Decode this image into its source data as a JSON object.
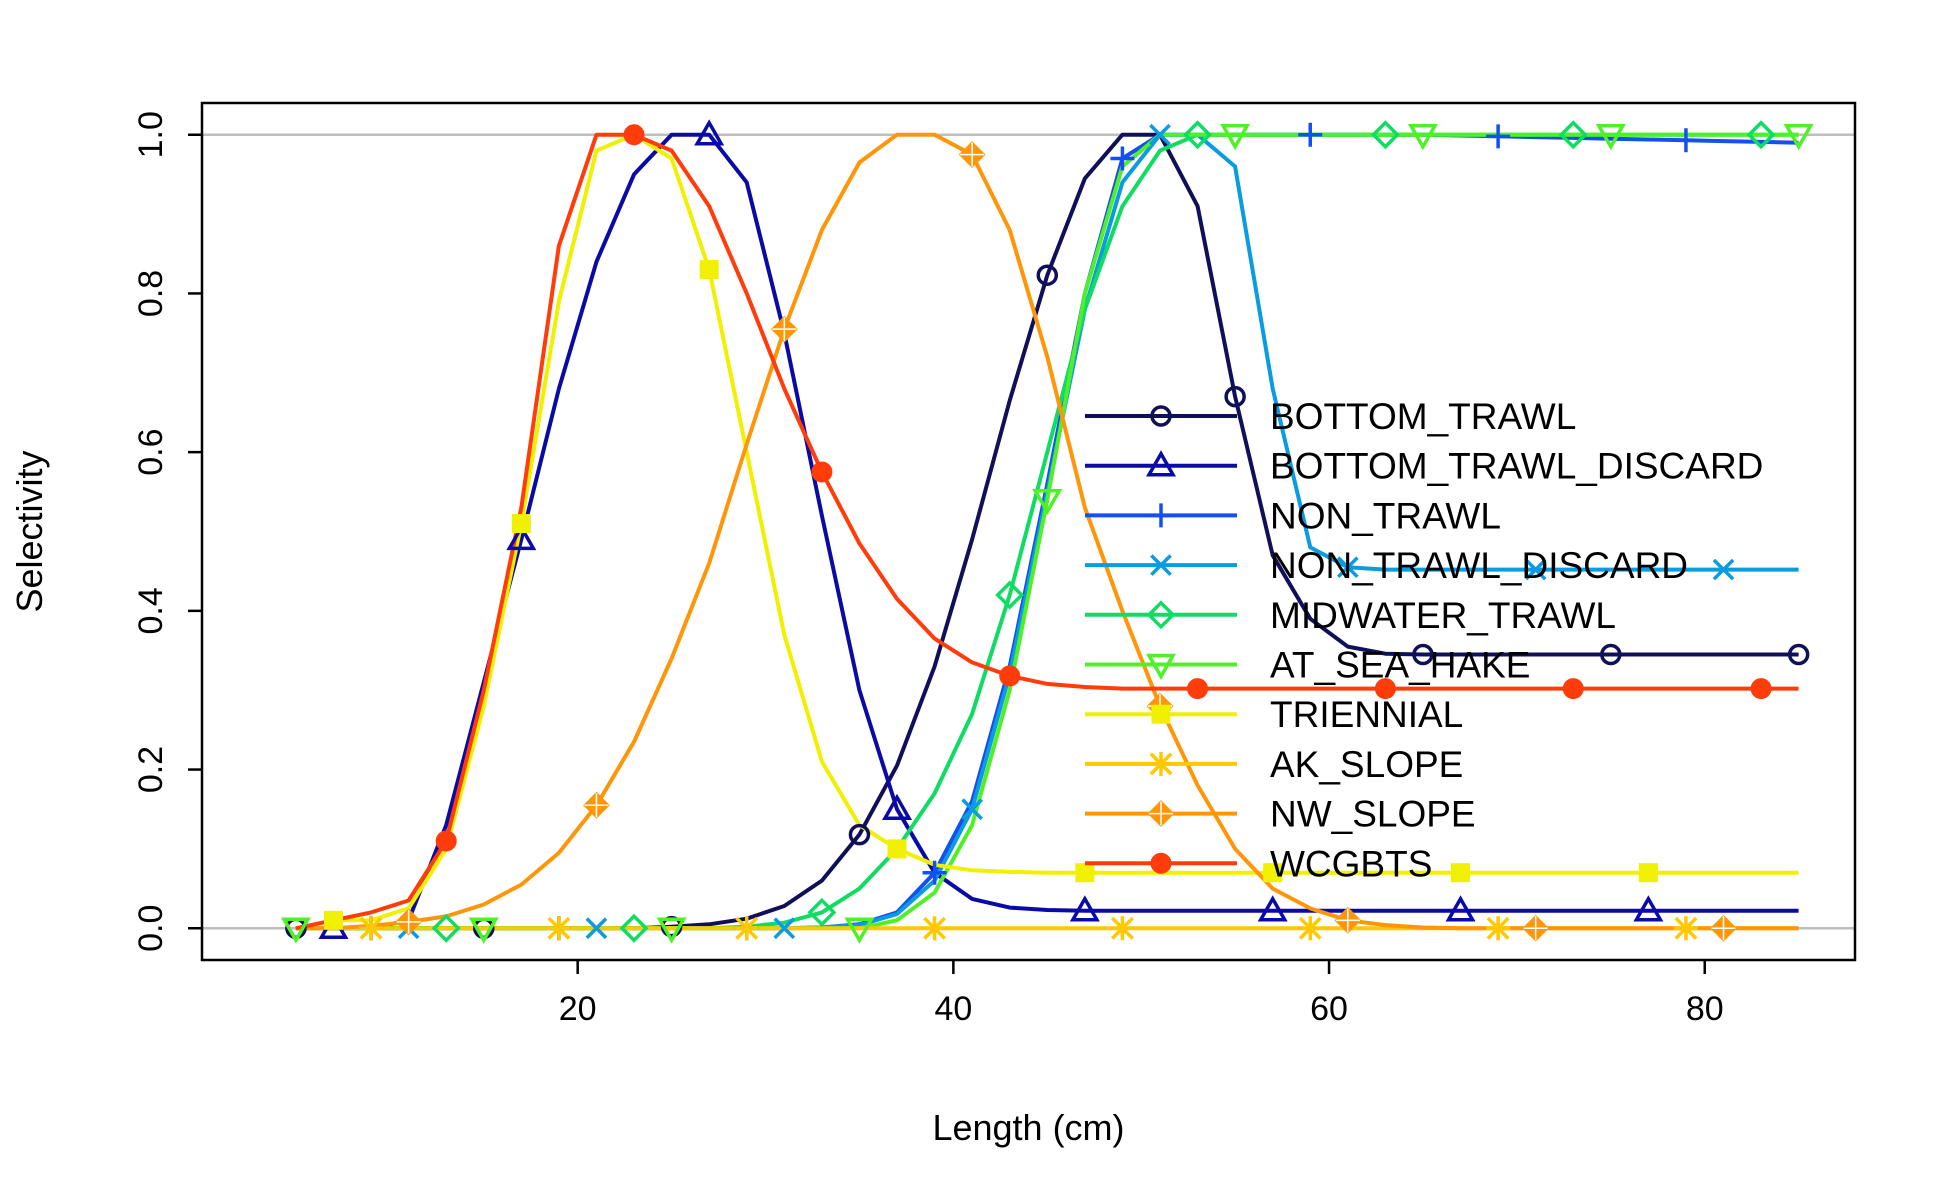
{
  "chart_data": {
    "type": "line",
    "title": "",
    "xlabel": "Length (cm)",
    "ylabel": "Selectivity",
    "xlim": [
      0,
      88
    ],
    "ylim": [
      -0.04,
      1.04
    ],
    "x_ticks": [
      20,
      40,
      60,
      80
    ],
    "y_ticks": [
      0.0,
      0.2,
      0.4,
      0.6,
      0.8,
      1.0
    ],
    "x_tick_labels": [
      "20",
      "40",
      "60",
      "80"
    ],
    "y_tick_labels": [
      "0.0",
      "0.2",
      "0.4",
      "0.6",
      "0.8",
      "1.0"
    ],
    "reference_lines_y": [
      0,
      1
    ],
    "reference_line_color": "#bebebe",
    "legend_position": "right",
    "x": [
      5,
      7,
      9,
      11,
      13,
      15,
      17,
      19,
      21,
      23,
      25,
      27,
      29,
      31,
      33,
      35,
      37,
      39,
      41,
      43,
      45,
      47,
      49,
      51,
      53,
      55,
      57,
      59,
      61,
      63,
      65,
      67,
      69,
      71,
      73,
      75,
      77,
      79,
      81,
      83,
      85
    ],
    "series": [
      {
        "name": "BOTTOM_TRAWL",
        "color": "#10105a",
        "marker": "circle",
        "values": [
          0,
          0,
          0,
          0,
          0,
          0,
          0,
          0,
          0,
          0,
          0.002,
          0.005,
          0.012,
          0.028,
          0.06,
          0.118,
          0.205,
          0.33,
          0.49,
          0.665,
          0.823,
          0.945,
          1.0,
          1.0,
          0.91,
          0.67,
          0.47,
          0.39,
          0.355,
          0.346,
          0.345,
          0.345,
          0.345,
          0.345,
          0.345,
          0.345,
          0.345,
          0.345,
          0.345,
          0.345,
          0.345
        ]
      },
      {
        "name": "BOTTOM_TRAWL_DISCARD",
        "color": "#0a0aa5",
        "marker": "triangle",
        "values": [
          0,
          0,
          0,
          0.01,
          0.13,
          0.31,
          0.49,
          0.68,
          0.84,
          0.95,
          1.0,
          1.0,
          0.94,
          0.75,
          0.52,
          0.3,
          0.15,
          0.07,
          0.037,
          0.026,
          0.023,
          0.022,
          0.022,
          0.022,
          0.022,
          0.022,
          0.022,
          0.022,
          0.022,
          0.022,
          0.022,
          0.022,
          0.022,
          0.022,
          0.022,
          0.022,
          0.022,
          0.022,
          0.022,
          0.022,
          0.022
        ]
      },
      {
        "name": "NON_TRAWL",
        "color": "#1450f0",
        "marker": "plus",
        "values": [
          0,
          0,
          0,
          0,
          0,
          0,
          0,
          0,
          0,
          0,
          0,
          0,
          0,
          0,
          0.001,
          0.005,
          0.02,
          0.07,
          0.16,
          0.33,
          0.56,
          0.8,
          0.97,
          1.0,
          1.0,
          1.0,
          1.0,
          1.0,
          1.0,
          1.0,
          1.0,
          0.999,
          0.998,
          0.997,
          0.996,
          0.995,
          0.994,
          0.993,
          0.992,
          0.991,
          0.99
        ]
      },
      {
        "name": "NON_TRAWL_DISCARD",
        "color": "#0a9be1",
        "marker": "x",
        "values": [
          0,
          0,
          0,
          0,
          0,
          0,
          0,
          0,
          0,
          0,
          0,
          0,
          0,
          0,
          0.001,
          0.004,
          0.018,
          0.06,
          0.15,
          0.32,
          0.55,
          0.78,
          0.94,
          1.0,
          1.0,
          0.96,
          0.68,
          0.48,
          0.455,
          0.452,
          0.452,
          0.452,
          0.452,
          0.452,
          0.452,
          0.452,
          0.452,
          0.452,
          0.452,
          0.452,
          0.452
        ]
      },
      {
        "name": "MIDWATER_TRAWL",
        "color": "#10dc64",
        "marker": "diamond",
        "values": [
          0,
          0,
          0,
          0,
          0,
          0,
          0,
          0,
          0,
          0,
          0,
          0,
          0.002,
          0.007,
          0.02,
          0.05,
          0.1,
          0.17,
          0.27,
          0.42,
          0.6,
          0.78,
          0.91,
          0.98,
          1.0,
          1.0,
          1.0,
          1.0,
          1.0,
          1.0,
          1.0,
          1.0,
          1.0,
          1.0,
          1.0,
          1.0,
          1.0,
          1.0,
          1.0,
          1.0,
          1.0
        ]
      },
      {
        "name": "AT_SEA_HAKE",
        "color": "#50f028",
        "marker": "triangle-down",
        "values": [
          0,
          0,
          0,
          0,
          0,
          0,
          0,
          0,
          0,
          0,
          0,
          0,
          0,
          0,
          0,
          0,
          0.01,
          0.045,
          0.13,
          0.3,
          0.54,
          0.8,
          0.96,
          1.0,
          1.0,
          1.0,
          1.0,
          1.0,
          1.0,
          1.0,
          1.0,
          1.0,
          1.0,
          1.0,
          1.0,
          1.0,
          1.0,
          1.0,
          1.0,
          1.0,
          1.0
        ]
      },
      {
        "name": "TRIENNIAL",
        "color": "#f0f000",
        "marker": "square",
        "values": [
          0,
          0.01,
          0.01,
          0.025,
          0.1,
          0.28,
          0.51,
          0.79,
          0.98,
          1.0,
          0.97,
          0.83,
          0.6,
          0.37,
          0.21,
          0.13,
          0.1,
          0.08,
          0.073,
          0.071,
          0.07,
          0.07,
          0.07,
          0.07,
          0.07,
          0.07,
          0.07,
          0.07,
          0.07,
          0.07,
          0.07,
          0.07,
          0.07,
          0.07,
          0.07,
          0.07,
          0.07,
          0.07,
          0.07,
          0.07,
          0.07
        ]
      },
      {
        "name": "AK_SLOPE",
        "color": "#ffc800",
        "marker": "asterisk",
        "values": [
          0,
          0,
          0,
          0,
          0,
          0,
          0,
          0,
          0,
          0,
          0,
          0,
          0,
          0,
          0,
          0,
          0,
          0,
          0,
          0,
          0,
          0,
          0,
          0,
          0,
          0,
          0,
          0,
          0,
          0,
          0,
          0,
          0,
          0,
          0,
          0,
          0,
          0,
          0,
          0,
          0
        ]
      },
      {
        "name": "NW_SLOPE",
        "color": "#ff960a",
        "marker": "diamond-plus",
        "values": [
          0,
          0,
          0.003,
          0.008,
          0.015,
          0.03,
          0.055,
          0.095,
          0.155,
          0.235,
          0.34,
          0.46,
          0.61,
          0.755,
          0.88,
          0.965,
          1.0,
          1.0,
          0.975,
          0.88,
          0.72,
          0.53,
          0.4,
          0.28,
          0.18,
          0.1,
          0.05,
          0.025,
          0.01,
          0.004,
          0.001,
          0,
          0,
          0,
          0,
          0,
          0,
          0,
          0,
          0,
          0
        ]
      },
      {
        "name": "WCGBTS",
        "color": "#ff3c0a",
        "marker": "filled-circle",
        "values": [
          0,
          0.01,
          0.02,
          0.035,
          0.11,
          0.3,
          0.53,
          0.86,
          1.0,
          1.0,
          0.98,
          0.91,
          0.8,
          0.68,
          0.575,
          0.485,
          0.415,
          0.365,
          0.335,
          0.318,
          0.308,
          0.304,
          0.302,
          0.302,
          0.302,
          0.302,
          0.302,
          0.302,
          0.302,
          0.302,
          0.302,
          0.302,
          0.302,
          0.302,
          0.302,
          0.302,
          0.302,
          0.302,
          0.302,
          0.302,
          0.302
        ]
      }
    ]
  }
}
